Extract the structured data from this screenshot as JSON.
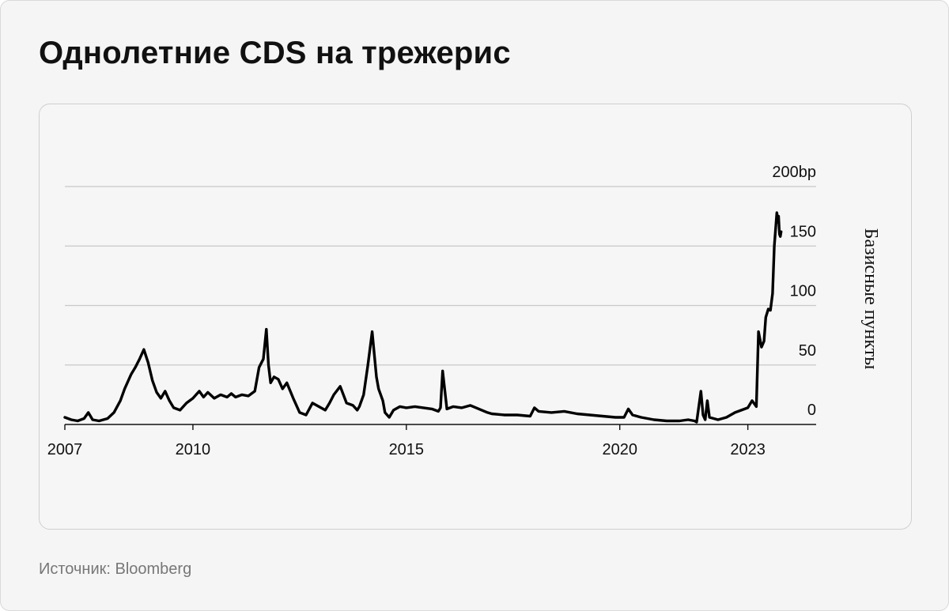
{
  "page": {
    "title": "Однолетние CDS на трежерис",
    "source": "Источник: Bloomberg"
  },
  "colors": {
    "background": "#f5f5f5",
    "line": "#000000",
    "grid": "#c8c8c8",
    "source_text": "#777777"
  },
  "chart_data": {
    "type": "line",
    "title": "",
    "xlabel": "",
    "ylabel": "Базисные пункты",
    "y_axis_side": "right",
    "grid": "horizontal",
    "legend": "none",
    "xlim": [
      2007.0,
      2024.6
    ],
    "ylim": [
      0,
      200
    ],
    "x_ticks": [
      {
        "value": 2007,
        "label": "2007"
      },
      {
        "value": 2010,
        "label": "2010"
      },
      {
        "value": 2015,
        "label": "2015"
      },
      {
        "value": 2020,
        "label": "2020"
      },
      {
        "value": 2023,
        "label": "2023"
      }
    ],
    "y_ticks": [
      {
        "value": 0,
        "label": "0"
      },
      {
        "value": 50,
        "label": "50"
      },
      {
        "value": 100,
        "label": "100"
      },
      {
        "value": 150,
        "label": "150"
      },
      {
        "value": 200,
        "label": "200bp"
      }
    ],
    "series": [
      {
        "x": [
          2007.0,
          2007.15,
          2007.3,
          2007.45,
          2007.55,
          2007.65,
          2007.8,
          2008.0,
          2008.15,
          2008.3,
          2008.4,
          2008.55,
          2008.65,
          2008.75,
          2008.85,
          2008.95,
          2009.05,
          2009.15,
          2009.25,
          2009.35,
          2009.45,
          2009.55,
          2009.7,
          2009.85,
          2010.0,
          2010.15,
          2010.25,
          2010.35,
          2010.5,
          2010.65,
          2010.8,
          2010.9,
          2011.0,
          2011.15,
          2011.3,
          2011.45,
          2011.55,
          2011.65,
          2011.72,
          2011.77,
          2011.82,
          2011.9,
          2012.0,
          2012.1,
          2012.2,
          2012.35,
          2012.5,
          2012.65,
          2012.8,
          2012.95,
          2013.1,
          2013.2,
          2013.3,
          2013.45,
          2013.6,
          2013.75,
          2013.85,
          2013.9,
          2013.95,
          2014.0,
          2014.1,
          2014.2,
          2014.3,
          2014.35,
          2014.4,
          2014.45,
          2014.5,
          2014.6,
          2014.7,
          2014.85,
          2015.0,
          2015.2,
          2015.4,
          2015.6,
          2015.75,
          2015.8,
          2015.85,
          2015.95,
          2016.1,
          2016.3,
          2016.5,
          2016.7,
          2016.9,
          2017.0,
          2017.3,
          2017.6,
          2017.9,
          2018.0,
          2018.1,
          2018.4,
          2018.7,
          2019.0,
          2019.3,
          2019.6,
          2019.9,
          2020.1,
          2020.2,
          2020.3,
          2020.5,
          2020.8,
          2021.1,
          2021.4,
          2021.6,
          2021.75,
          2021.8,
          2021.9,
          2021.95,
          2022.0,
          2022.05,
          2022.1,
          2022.3,
          2022.5,
          2022.7,
          2022.85,
          2023.0,
          2023.1,
          2023.2,
          2023.25,
          2023.32,
          2023.38,
          2023.42,
          2023.48,
          2023.53,
          2023.58,
          2023.62,
          2023.68,
          2023.71,
          2023.72,
          2023.74,
          2023.76,
          2023.78
        ],
        "y": [
          6,
          4,
          3,
          5,
          10,
          4,
          3,
          5,
          10,
          20,
          30,
          42,
          48,
          55,
          63,
          52,
          37,
          27,
          22,
          28,
          20,
          14,
          12,
          18,
          22,
          28,
          23,
          27,
          22,
          25,
          23,
          26,
          23,
          25,
          24,
          28,
          48,
          55,
          80,
          50,
          35,
          40,
          38,
          30,
          35,
          22,
          10,
          8,
          18,
          15,
          12,
          18,
          25,
          32,
          18,
          16,
          12,
          15,
          20,
          25,
          50,
          78,
          40,
          30,
          25,
          20,
          10,
          6,
          12,
          15,
          14,
          15,
          14,
          13,
          11,
          14,
          45,
          13,
          15,
          14,
          16,
          13,
          10,
          9,
          8,
          8,
          7,
          14,
          11,
          10,
          11,
          9,
          8,
          7,
          6,
          6,
          13,
          8,
          6,
          4,
          3,
          3,
          4,
          3,
          2,
          28,
          8,
          4,
          20,
          6,
          4,
          6,
          10,
          12,
          14,
          20,
          15,
          78,
          65,
          70,
          90,
          97,
          96,
          110,
          150,
          178,
          170,
          175,
          160,
          158,
          162
        ]
      }
    ]
  }
}
